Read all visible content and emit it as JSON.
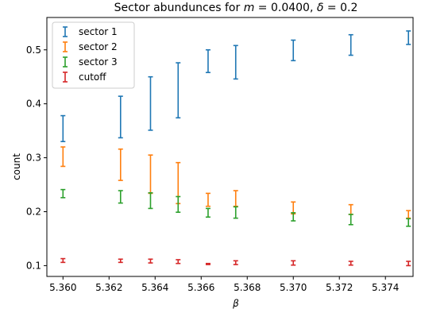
{
  "chart_data": {
    "type": "errorbar",
    "title_prefix": "Sector abundunces for ",
    "title_m": "m",
    "title_m_value": " = 0.0400, ",
    "title_delta": "δ",
    "title_delta_value": " = 0.2",
    "xlabel": "β",
    "ylabel": "count",
    "xlim": [
      5.3593,
      5.3752
    ],
    "ylim": [
      0.08,
      0.56
    ],
    "xticks": [
      "5.360",
      "5.362",
      "5.364",
      "5.366",
      "5.368",
      "5.370",
      "5.372",
      "5.374"
    ],
    "xtick_values": [
      5.36,
      5.362,
      5.364,
      5.366,
      5.368,
      5.37,
      5.372,
      5.374
    ],
    "yticks": [
      "0.1",
      "0.2",
      "0.3",
      "0.4",
      "0.5"
    ],
    "ytick_values": [
      0.1,
      0.2,
      0.3,
      0.4,
      0.5
    ],
    "legend_position": "top-left",
    "x": [
      5.36,
      5.3625,
      5.3638,
      5.365,
      5.3663,
      5.3675,
      5.37,
      5.3725,
      5.375
    ],
    "series": [
      {
        "name": "sector 1",
        "color": "#1f77b4",
        "low": [
          0.33,
          0.337,
          0.351,
          0.374,
          0.458,
          0.446,
          0.48,
          0.49,
          0.51
        ],
        "high": [
          0.378,
          0.414,
          0.45,
          0.476,
          0.5,
          0.508,
          0.518,
          0.528,
          0.535
        ]
      },
      {
        "name": "sector 2",
        "color": "#ff7f0e",
        "low": [
          0.284,
          0.258,
          0.234,
          0.215,
          0.21,
          0.21,
          0.196,
          0.195,
          0.188
        ],
        "high": [
          0.32,
          0.316,
          0.305,
          0.291,
          0.234,
          0.239,
          0.218,
          0.213,
          0.202
        ]
      },
      {
        "name": "sector 3",
        "color": "#2ca02c",
        "low": [
          0.226,
          0.216,
          0.206,
          0.199,
          0.19,
          0.188,
          0.183,
          0.176,
          0.173
        ],
        "high": [
          0.241,
          0.239,
          0.235,
          0.228,
          0.206,
          0.209,
          0.198,
          0.195,
          0.187
        ]
      },
      {
        "name": "cutoff",
        "color": "#d62728",
        "low": [
          0.106,
          0.106,
          0.105,
          0.104,
          0.102,
          0.102,
          0.101,
          0.101,
          0.1
        ],
        "high": [
          0.113,
          0.112,
          0.112,
          0.111,
          0.104,
          0.109,
          0.109,
          0.108,
          0.108
        ]
      }
    ]
  }
}
